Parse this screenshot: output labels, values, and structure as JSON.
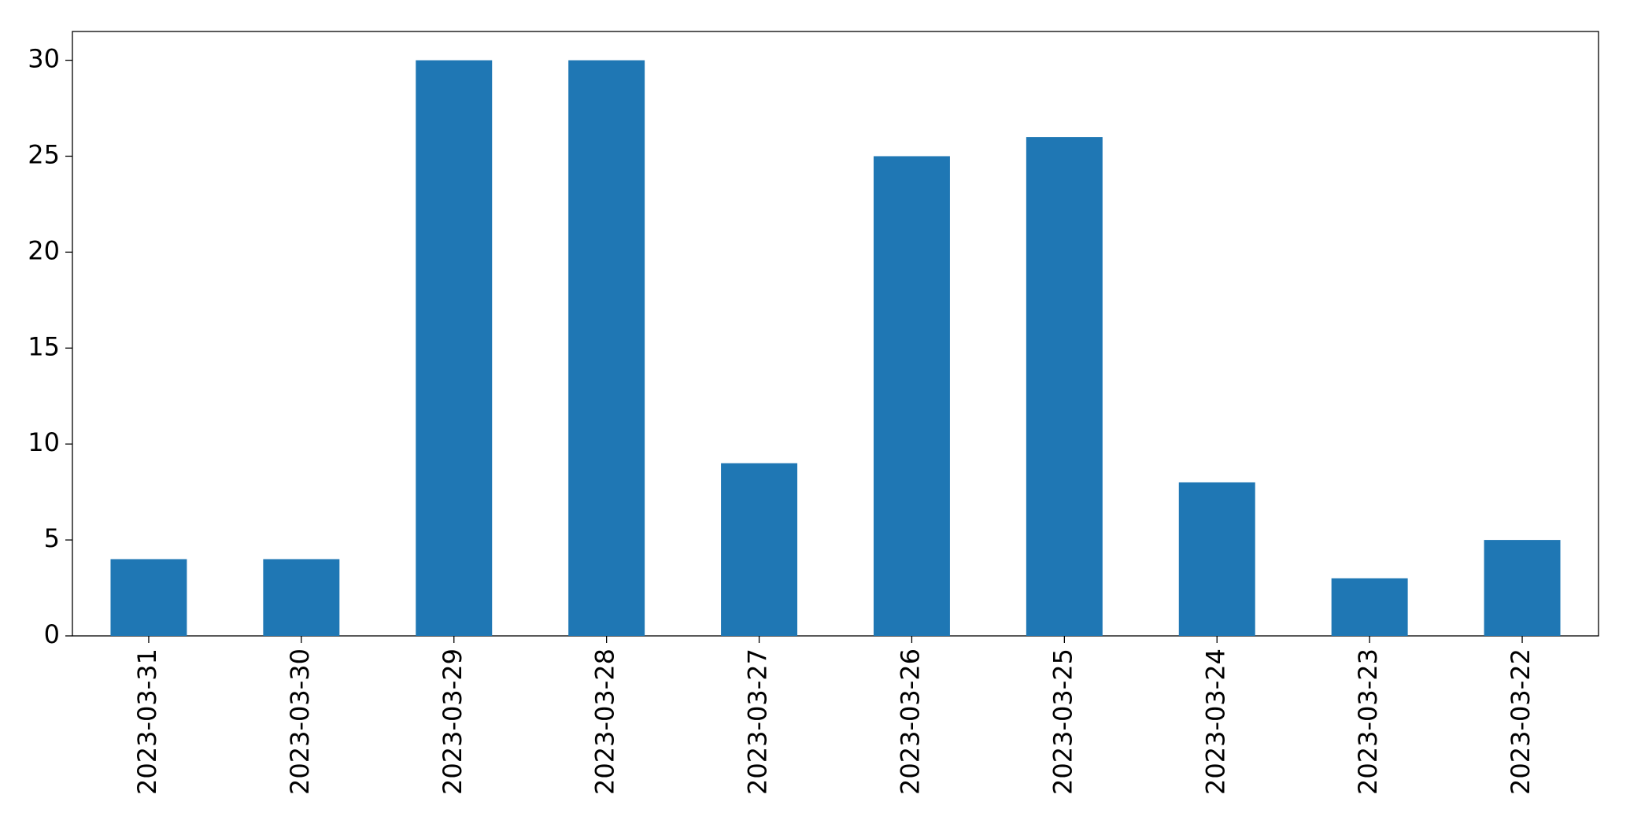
{
  "chart_data": {
    "type": "bar",
    "categories": [
      "2023-03-31",
      "2023-03-30",
      "2023-03-29",
      "2023-03-28",
      "2023-03-27",
      "2023-03-26",
      "2023-03-25",
      "2023-03-24",
      "2023-03-23",
      "2023-03-22"
    ],
    "values": [
      4,
      4,
      30,
      30,
      9,
      25,
      26,
      8,
      3,
      5
    ],
    "color": "#1f77b4",
    "ylim": [
      0,
      31.5
    ],
    "yticks": [
      0,
      5,
      10,
      15,
      20,
      25,
      30
    ],
    "grid": false
  }
}
